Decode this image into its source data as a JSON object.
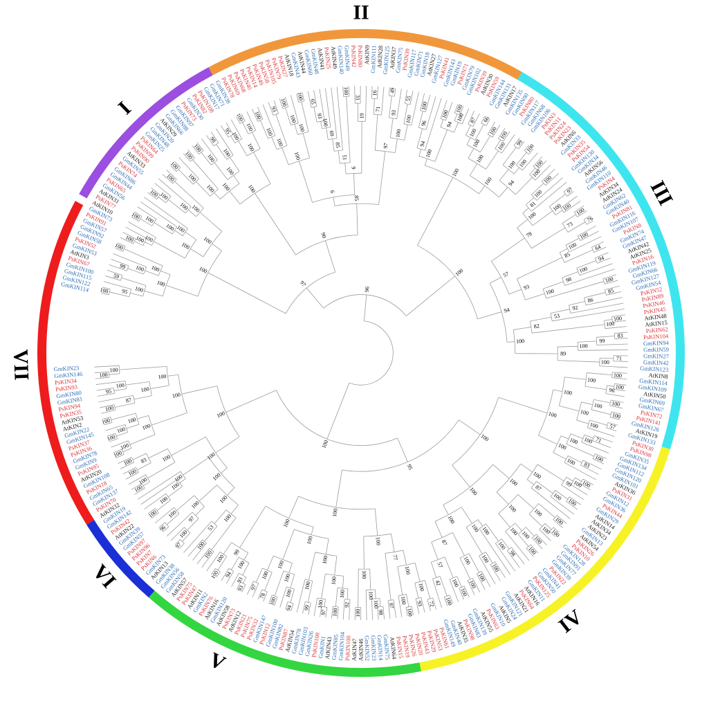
{
  "colors": {
    "PsKIN": "#d9373c",
    "GmKIN": "#2f6fb5",
    "AtKIN": "#1a1a1a",
    "clade_I": "#9b4ee0",
    "clade_II": "#f0973c",
    "clade_III": "#3ee5ef",
    "clade_IV": "#f7f225",
    "clade_V": "#33d640",
    "clade_VI": "#1a2fd6",
    "clade_VII": "#ee1c1c"
  },
  "clades": [
    {
      "label": "I",
      "color": "clade_I",
      "start": 299.4,
      "end": 331.9,
      "label_angle": 316
    },
    {
      "label": "II",
      "color": "clade_II",
      "start": 331.9,
      "end": 29.8,
      "label_angle": 0
    },
    {
      "label": "III",
      "color": "clade_III",
      "start": 29.8,
      "end": 107.3,
      "label_angle": 62
    },
    {
      "label": "IV",
      "color": "clade_IV",
      "start": 107.3,
      "end": 169.3,
      "label_angle": 142
    },
    {
      "label": "V",
      "color": "clade_V",
      "start": 169.3,
      "end": 221.0,
      "label_angle": 205
    },
    {
      "label": "VI",
      "color": "clade_VI",
      "start": 221.0,
      "end": 238.0,
      "label_angle": 229
    },
    {
      "label": "VII",
      "color": "clade_VII",
      "start": 238.0,
      "end": 298.0,
      "label_angle": 268
    }
  ],
  "leaves": [
    "GmKIN114",
    "GmKIN122",
    "GmKIN115",
    "GmKIN100",
    "PsKIN67",
    "AtKIN3",
    "GmKIN53",
    "PsKIN52",
    "GmKIN58",
    "GmKIN92",
    "GmKIN57",
    "PsKIN91",
    "GmKIN73",
    "AtKIN10",
    "PsKIN77",
    "AtKIN31",
    "GmKIN56",
    "PsKIN65",
    "GmKIN44",
    "GmKIN86",
    "PsKIN74",
    "GmKIN55",
    "AtKIN33",
    "PsKIN90",
    "PsKIN99",
    "PsKIN64",
    "GmKIN25",
    "GmKIN48",
    "GmKIN20",
    "AtKIN29",
    "GmKIN66",
    "GmKIN88",
    "GmKIN97",
    "PsKIN73",
    "GmKIN30",
    "PsKIN82",
    "PsKIN108",
    "GmKIN17",
    "GmKIN71",
    "GmKIN38",
    "PsKIN78",
    "PsKIN69",
    "PsKIN68",
    "PsKIN40",
    "PsKIN14",
    "PsKIN49",
    "PsKIN58",
    "PsKIN105",
    "PsKIN79",
    "PsKIN27",
    "AtKIN18",
    "GmKIN43",
    "AtKIN44",
    "GmKIN60",
    "GmKIN48",
    "AtKIN41",
    "PsKIN25",
    "AtKIN49",
    "GmKIN140",
    "GmKIN49",
    "PsKIN42",
    "PsKIN80",
    "AtKIN9",
    "GmKIN111",
    "AtKIN28",
    "GmKIN125",
    "AtKIN37",
    "GmKIN75",
    "PsKIN39",
    "GmKIN117",
    "GmKIN71",
    "GmKIN18",
    "AtKIN27",
    "GmKIN127",
    "PsKIN41",
    "GmKIN143",
    "GmKIN19",
    "PsKIN71",
    "GmKIN79",
    "GmKIN102",
    "PsKIN39",
    "AtKIN30",
    "PsKIN59",
    "GmKIN144",
    "GmKIN131",
    "AtKIN17",
    "GmKIN135",
    "GmKIN90",
    "PsKIN80",
    "GmKIN117",
    "GmKIN68",
    "GmKIN106",
    "PsKIN3",
    "PsKIN11",
    "PsKIN24",
    "PsKIN23",
    "AtKIN6",
    "GmKIN33",
    "PsKIN35",
    "PsKIN54",
    "GmKIN130",
    "GmKIN34",
    "AtKIN56",
    "GmKIN46",
    "GmKIN110",
    "PsKIN4",
    "AtKIN34",
    "AtKIN24",
    "GmKIN62",
    "GmKIN40",
    "PsKIN81",
    "GmKIN116",
    "GmKIN107",
    "PsKIN8",
    "GmKIN74",
    "GmKIN47",
    "AtKIN42",
    "AtKIN25",
    "PsKIN16",
    "GmKIN119",
    "GmKIN66",
    "GmKIN127",
    "GmKIN54",
    "PsKIN52",
    "PsKIN89",
    "PsKIN46",
    "PsKIN45",
    "AtKIN48",
    "AtKIN15",
    "PsKIN62",
    "PsKIN104",
    "GmKIN94",
    "GmKIN59",
    "GmKIN27",
    "GmKIN42",
    "GmKIN123",
    "AtKIN8",
    "GmKIN114",
    "GmKIN109",
    "AtKIN50",
    "GmKIN69",
    "GmKIN67",
    "PsKIN72",
    "PsKIN141",
    "GmKIN126",
    "AtKIN19",
    "GmKIN133",
    "PsKIN30",
    "PsKIN98",
    "GmKIN35",
    "GmKIN134",
    "GmKIN112",
    "GmKIN120",
    "GmKIN101",
    "AtKIN36",
    "PsKIN31",
    "GmKIN12",
    "GmKIN36",
    "PsKIN44",
    "GmKIN29",
    "AtKIN14",
    "AtKIN34",
    "AtKIN23",
    "GmKIN13",
    "AtKIN54",
    "PsKIN26",
    "PsKIN10",
    "GmKIN128",
    "GmKIN91",
    "GmKIN77",
    "GmKIN39",
    "PsKIN22",
    "GmKIN41",
    "GmKIN50",
    "PsKIN125",
    "GmKIN11",
    "AtKIN16",
    "PsKIN64",
    "AtKIN21",
    "GmKIN121",
    "GmKIN24",
    "AtKIN5",
    "GmKIN10",
    "PsKIN63",
    "AtKIN55",
    "GmKIN139",
    "GmKIN83",
    "PsKIN98",
    "AtKIN35",
    "GmKIN40",
    "GmKIN149",
    "PsKIN61",
    "PsKIN53",
    "PsKIN29",
    "PsKIN43",
    "PsKIN20",
    "PsKIN26",
    "PsKIN19",
    "PsKIN15",
    "AtKIN64",
    "GmKIN75",
    "GmKIN14",
    "GmKIN23",
    "GmKIN52",
    "AtKIN46",
    "AtKIN47",
    "PsKIN100",
    "GmKIN104",
    "GmKIN85",
    "AtKIN43",
    "GmKIN1",
    "PsKIN108",
    "GmKIN26",
    "GmKIN103",
    "GmKIN78",
    "AtKIN54",
    "PsKIN87",
    "GmKIN82",
    "GmKIN100",
    "PsKIN12",
    "GmKIN147",
    "PsKIN32",
    "PsKIN75",
    "PsKIN21",
    "AtKIN12",
    "PsKIN73",
    "AtKIN58",
    "GmKIN120",
    "AtKIN16",
    "PsKIN76",
    "GmKIN2",
    "AtKIN11",
    "PsKIN47",
    "PsKIN75",
    "AtKIN57",
    "GmKIN58",
    "GmKIN56",
    "GmKIN38",
    "AtKIN13",
    "GmKIN73",
    "PsKIN6",
    "PsKIN7",
    "PsKIN96",
    "PsKIN97",
    "GmKIN57",
    "GmKIN39",
    "AtKIN22",
    "PsKIN42",
    "GmKIN142",
    "GmKIN19",
    "AtKIN32",
    "PsKIN70",
    "GmKIN137",
    "GmKIN65",
    "PsKIN18",
    "GmKIN108",
    "AtKIN20",
    "PsKIN95",
    "GmKIN9",
    "GmKIN78",
    "PsKIN36",
    "PsKIN37",
    "GmKIN145",
    "GmKIN22",
    "AtKIN2",
    "AtKIN53",
    "PsKIN35",
    "PsKIN94",
    "GmKIN81",
    "GmKIN80",
    "PsKIN93",
    "PsKIN34",
    "GmKIN146",
    "GmKIN23"
  ],
  "bootstrap_values": [
    "100",
    "95",
    "59",
    "100",
    "99",
    "100",
    "100",
    "100",
    "100",
    "100",
    "100",
    "100",
    "100",
    "100",
    "100",
    "100",
    "100",
    "100",
    "100",
    "100",
    "100",
    "100",
    "100",
    "100",
    "100",
    "100",
    "100",
    "100",
    "100",
    "100",
    "98",
    "100",
    "100",
    "100",
    "95",
    "100",
    "100",
    "100",
    "100",
    "100",
    "100",
    "100",
    "93",
    "100",
    "100",
    "100",
    "100",
    "100",
    "100",
    "65",
    "93",
    "100",
    "69",
    "85",
    "100",
    "51",
    "31",
    "19",
    "9",
    "6",
    "16",
    "71",
    "49",
    "93",
    "55",
    "100",
    "100",
    "97",
    "85",
    "90",
    "97",
    "100",
    "96",
    "94",
    "100",
    "100",
    "100",
    "94",
    "100",
    "87",
    "66",
    "100",
    "100",
    "100",
    "100",
    "100",
    "100",
    "99",
    "100",
    "100",
    "100",
    "100",
    "100",
    "94",
    "100",
    "100",
    "100",
    "100",
    "81",
    "97",
    "100",
    "100",
    "100",
    "100",
    "76",
    "73",
    "78",
    "100",
    "100",
    "64",
    "85",
    "94",
    "100",
    "98",
    "100",
    "100",
    "93",
    "57",
    "85",
    "86",
    "92",
    "53",
    "100",
    "100",
    "82",
    "83",
    "99",
    "100",
    "71",
    "100",
    "89",
    "100",
    "94",
    "100",
    "96",
    "100",
    "100",
    "96",
    "100",
    "100",
    "100",
    "100",
    "57",
    "100",
    "100",
    "100",
    "71",
    "100",
    "100",
    "100",
    "83",
    "100",
    "100",
    "100",
    "100",
    "100",
    "99",
    "100",
    "100",
    "87",
    "100",
    "100",
    "100",
    "100",
    "100",
    "100",
    "100",
    "100",
    "100",
    "100",
    "100",
    "98",
    "100",
    "100",
    "100",
    "100",
    "100",
    "100",
    "100",
    "100",
    "100",
    "100",
    "100",
    "42",
    "57",
    "87",
    "100",
    "100",
    "100",
    "72",
    "93",
    "100",
    "100",
    "100",
    "100",
    "87",
    "77",
    "98",
    "100",
    "100",
    "100",
    "100",
    "100",
    "92",
    "100",
    "100",
    "97",
    "100",
    "100",
    "99",
    "100",
    "100",
    "94",
    "100",
    "100",
    "100",
    "78",
    "97",
    "100",
    "100",
    "100",
    "93",
    "93",
    "94",
    "100",
    "100",
    "100",
    "99",
    "100",
    "100",
    "95",
    "100",
    "100",
    "53",
    "100",
    "97",
    "100",
    "97",
    "96",
    "100",
    "100",
    "100",
    "100",
    "100",
    "100",
    "100",
    "100",
    "100",
    "100",
    "100",
    "100",
    "83",
    "100",
    "100",
    "100",
    "100",
    "100",
    "100",
    "100",
    "100",
    "100",
    "100",
    "87",
    "95",
    "100",
    "100",
    "100",
    "100",
    "100",
    "100",
    "100",
    "100",
    "100",
    "100",
    "100",
    "100",
    "100",
    "100",
    "100",
    "100",
    "100"
  ]
}
